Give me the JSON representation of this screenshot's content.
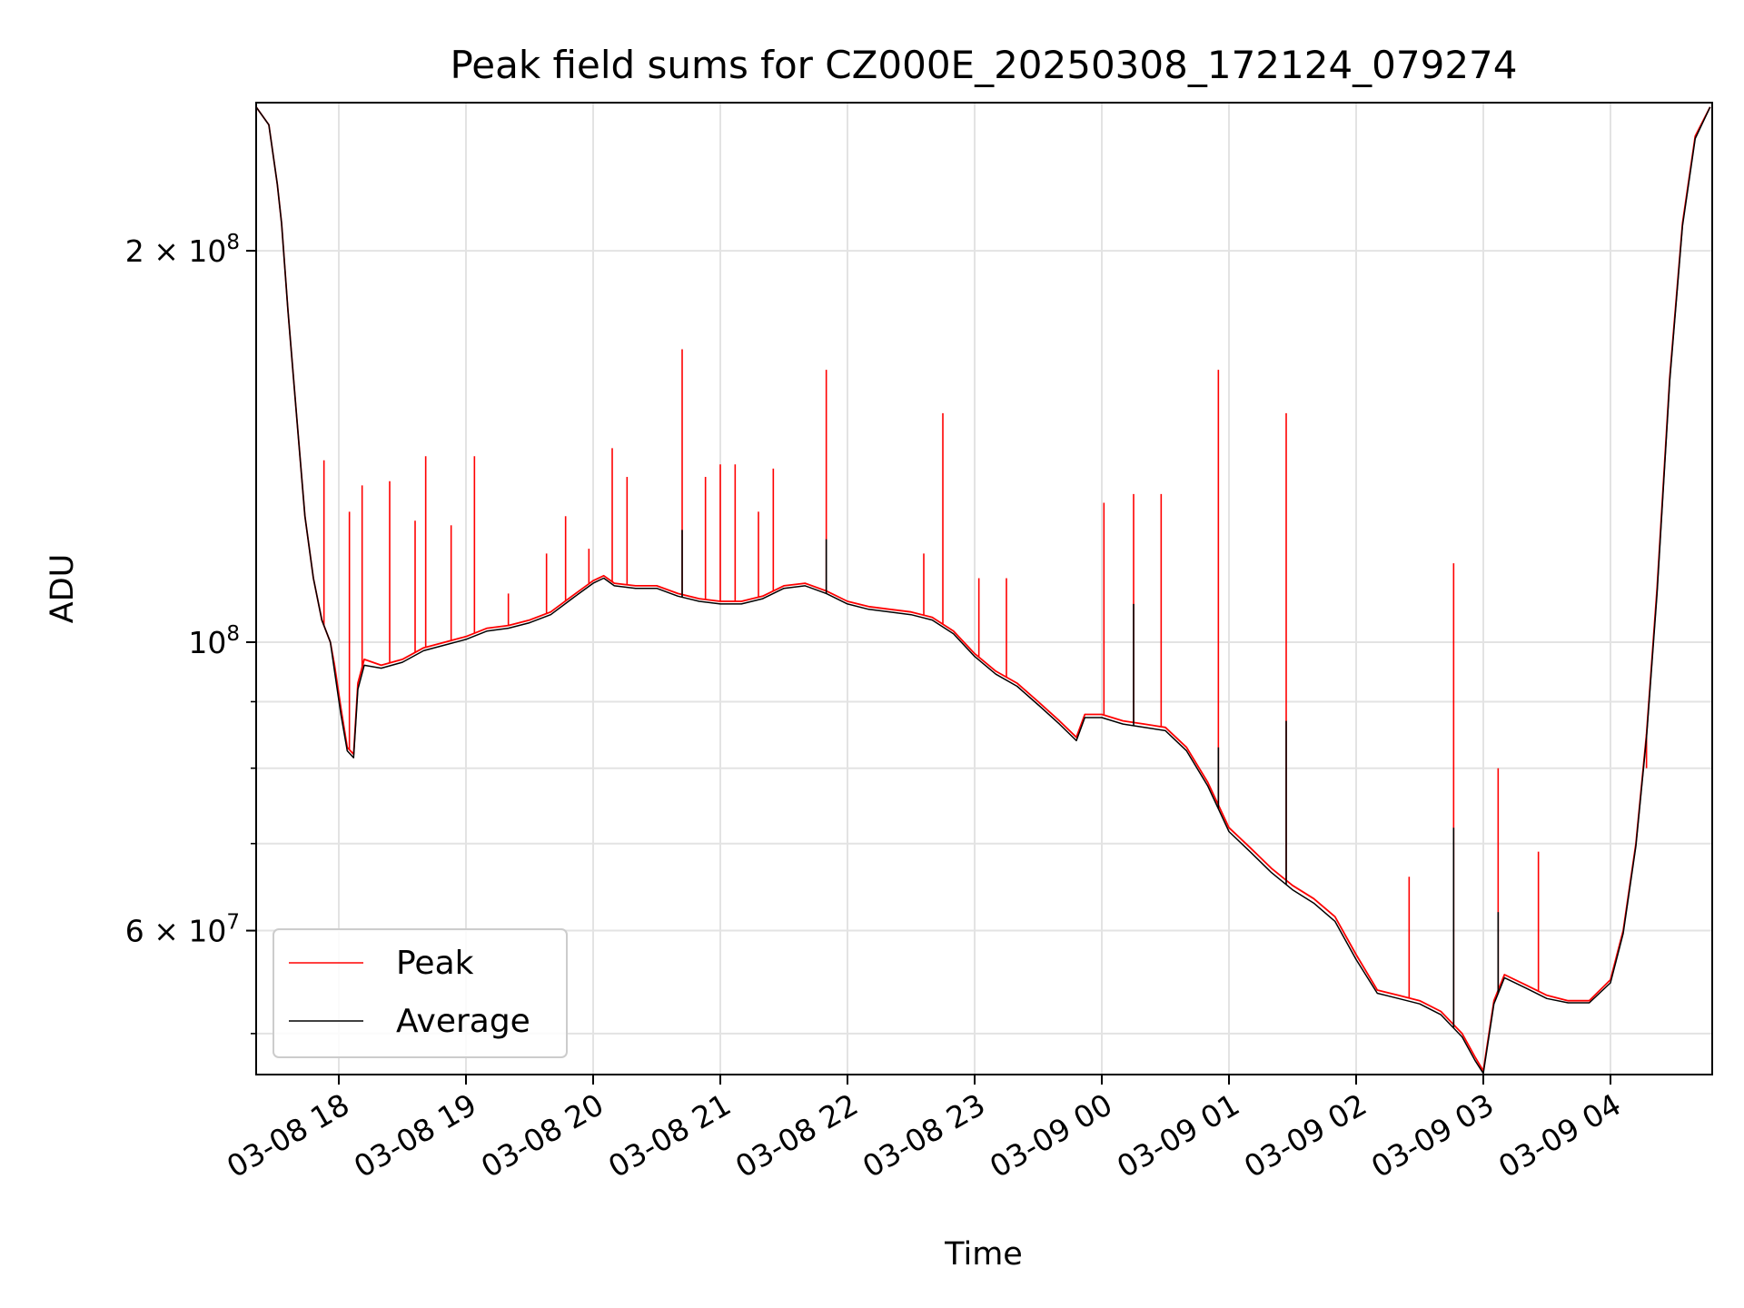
{
  "chart_data": {
    "type": "line",
    "title": "Peak field sums for CZ000E_20250308_172124_079274",
    "xlabel": "Time",
    "ylabel": "ADU",
    "yscale": "log",
    "ylim": [
      46500000,
      260000000
    ],
    "xlim": [
      "2025-03-08 17:21",
      "2025-03-09 04:48"
    ],
    "grid": true,
    "legend_position": "lower-left",
    "x_ticks": [
      {
        "value": "2025-03-08 18:00",
        "label": "03-08 18"
      },
      {
        "value": "2025-03-08 19:00",
        "label": "03-08 19"
      },
      {
        "value": "2025-03-08 20:00",
        "label": "03-08 20"
      },
      {
        "value": "2025-03-08 21:00",
        "label": "03-08 21"
      },
      {
        "value": "2025-03-08 22:00",
        "label": "03-08 22"
      },
      {
        "value": "2025-03-08 23:00",
        "label": "03-08 23"
      },
      {
        "value": "2025-03-09 00:00",
        "label": "03-09 00"
      },
      {
        "value": "2025-03-09 01:00",
        "label": "03-09 01"
      },
      {
        "value": "2025-03-09 02:00",
        "label": "03-09 02"
      },
      {
        "value": "2025-03-09 03:00",
        "label": "03-09 03"
      },
      {
        "value": "2025-03-09 04:00",
        "label": "03-09 04"
      }
    ],
    "y_ticks": [
      {
        "value": 200000000,
        "base": "2 × 10",
        "exp": "8"
      },
      {
        "value": 100000000,
        "base": "10",
        "exp": "8"
      },
      {
        "value": 60000000,
        "base": "6 × 10",
        "exp": "7"
      }
    ],
    "y_minor_ticks": [
      50000000,
      70000000,
      80000000,
      90000000
    ],
    "series": [
      {
        "name": "Peak",
        "color": "#ff0000",
        "points": [
          [
            "2025-03-08 17:21",
            258000000
          ],
          [
            "2025-03-08 17:27",
            250000000
          ],
          [
            "2025-03-08 17:31",
            225000000
          ],
          [
            "2025-03-08 17:33",
            210000000
          ],
          [
            "2025-03-08 17:36",
            180000000
          ],
          [
            "2025-03-08 17:40",
            150000000
          ],
          [
            "2025-03-08 17:44",
            125000000
          ],
          [
            "2025-03-08 17:48",
            112000000
          ],
          [
            "2025-03-08 17:52",
            104000000
          ],
          [
            "2025-03-08 17:56",
            100000000
          ],
          [
            "2025-03-08 17:58",
            96000000
          ],
          [
            "2025-03-08 18:01",
            89000000
          ],
          [
            "2025-03-08 18:04",
            83000000
          ],
          [
            "2025-03-08 18:07",
            82000000
          ],
          [
            "2025-03-08 18:09",
            93000000
          ],
          [
            "2025-03-08 18:12",
            97000000
          ],
          [
            "2025-03-08 18:20",
            96000000
          ],
          [
            "2025-03-08 18:30",
            97000000
          ],
          [
            "2025-03-08 18:40",
            99000000
          ],
          [
            "2025-03-08 18:50",
            100000000
          ],
          [
            "2025-03-08 19:00",
            101000000
          ],
          [
            "2025-03-08 19:10",
            102500000
          ],
          [
            "2025-03-08 19:20",
            103000000
          ],
          [
            "2025-03-08 19:30",
            104000000
          ],
          [
            "2025-03-08 19:40",
            105500000
          ],
          [
            "2025-03-08 19:50",
            108500000
          ],
          [
            "2025-03-08 20:00",
            111500000
          ],
          [
            "2025-03-08 20:05",
            112500000
          ],
          [
            "2025-03-08 20:10",
            111000000
          ],
          [
            "2025-03-08 20:20",
            110500000
          ],
          [
            "2025-03-08 20:30",
            110500000
          ],
          [
            "2025-03-08 20:40",
            109000000
          ],
          [
            "2025-03-08 20:50",
            108000000
          ],
          [
            "2025-03-08 21:00",
            107500000
          ],
          [
            "2025-03-08 21:10",
            107500000
          ],
          [
            "2025-03-08 21:20",
            108500000
          ],
          [
            "2025-03-08 21:30",
            110500000
          ],
          [
            "2025-03-08 21:40",
            111000000
          ],
          [
            "2025-03-08 21:50",
            109500000
          ],
          [
            "2025-03-08 22:00",
            107500000
          ],
          [
            "2025-03-08 22:10",
            106500000
          ],
          [
            "2025-03-08 22:20",
            106000000
          ],
          [
            "2025-03-08 22:30",
            105500000
          ],
          [
            "2025-03-08 22:40",
            104500000
          ],
          [
            "2025-03-08 22:50",
            102000000
          ],
          [
            "2025-03-08 23:00",
            98000000
          ],
          [
            "2025-03-08 23:10",
            95000000
          ],
          [
            "2025-03-08 23:20",
            93000000
          ],
          [
            "2025-03-08 23:30",
            90000000
          ],
          [
            "2025-03-08 23:40",
            87000000
          ],
          [
            "2025-03-08 23:48",
            84500000
          ],
          [
            "2025-03-08 23:52",
            88000000
          ],
          [
            "2025-03-09 00:00",
            88000000
          ],
          [
            "2025-03-09 00:10",
            87000000
          ],
          [
            "2025-03-09 00:20",
            86500000
          ],
          [
            "2025-03-09 00:30",
            86000000
          ],
          [
            "2025-03-09 00:40",
            83000000
          ],
          [
            "2025-03-09 00:50",
            78000000
          ],
          [
            "2025-03-09 01:00",
            72000000
          ],
          [
            "2025-03-09 01:10",
            69500000
          ],
          [
            "2025-03-09 01:20",
            67000000
          ],
          [
            "2025-03-09 01:30",
            65000000
          ],
          [
            "2025-03-09 01:40",
            63500000
          ],
          [
            "2025-03-09 01:50",
            61500000
          ],
          [
            "2025-03-09 02:00",
            57500000
          ],
          [
            "2025-03-09 02:10",
            54000000
          ],
          [
            "2025-03-09 02:20",
            53500000
          ],
          [
            "2025-03-09 02:30",
            53000000
          ],
          [
            "2025-03-09 02:40",
            52000000
          ],
          [
            "2025-03-09 02:50",
            50000000
          ],
          [
            "2025-03-09 02:56",
            48000000
          ],
          [
            "2025-03-09 03:00",
            46800000
          ],
          [
            "2025-03-09 03:05",
            53000000
          ],
          [
            "2025-03-09 03:10",
            55500000
          ],
          [
            "2025-03-09 03:20",
            54500000
          ],
          [
            "2025-03-09 03:30",
            53500000
          ],
          [
            "2025-03-09 03:40",
            53000000
          ],
          [
            "2025-03-09 03:50",
            53000000
          ],
          [
            "2025-03-09 04:00",
            55000000
          ],
          [
            "2025-03-09 04:06",
            60000000
          ],
          [
            "2025-03-09 04:12",
            70000000
          ],
          [
            "2025-03-09 04:17",
            85000000
          ],
          [
            "2025-03-09 04:22",
            110000000
          ],
          [
            "2025-03-09 04:28",
            160000000
          ],
          [
            "2025-03-09 04:34",
            210000000
          ],
          [
            "2025-03-09 04:40",
            245000000
          ],
          [
            "2025-03-09 04:47",
            258000000
          ]
        ],
        "spikes": [
          [
            "2025-03-08 17:53",
            138000000
          ],
          [
            "2025-03-08 18:05",
            126000000
          ],
          [
            "2025-03-08 18:11",
            132000000
          ],
          [
            "2025-03-08 18:24",
            133000000
          ],
          [
            "2025-03-08 18:36",
            124000000
          ],
          [
            "2025-03-08 18:41",
            139000000
          ],
          [
            "2025-03-08 18:53",
            123000000
          ],
          [
            "2025-03-08 19:04",
            139000000
          ],
          [
            "2025-03-08 19:20",
            109000000
          ],
          [
            "2025-03-08 19:38",
            117000000
          ],
          [
            "2025-03-08 19:47",
            125000000
          ],
          [
            "2025-03-08 19:58",
            118000000
          ],
          [
            "2025-03-08 20:09",
            141000000
          ],
          [
            "2025-03-08 20:16",
            134000000
          ],
          [
            "2025-03-08 20:42",
            168000000
          ],
          [
            "2025-03-08 20:53",
            134000000
          ],
          [
            "2025-03-08 21:00",
            137000000
          ],
          [
            "2025-03-08 21:07",
            137000000
          ],
          [
            "2025-03-08 21:18",
            126000000
          ],
          [
            "2025-03-08 21:25",
            136000000
          ],
          [
            "2025-03-08 21:50",
            162000000
          ],
          [
            "2025-03-08 22:36",
            117000000
          ],
          [
            "2025-03-08 22:45",
            150000000
          ],
          [
            "2025-03-08 23:02",
            112000000
          ],
          [
            "2025-03-08 23:15",
            112000000
          ],
          [
            "2025-03-09 00:01",
            128000000
          ],
          [
            "2025-03-09 00:15",
            130000000
          ],
          [
            "2025-03-09 00:28",
            130000000
          ],
          [
            "2025-03-09 00:55",
            162000000
          ],
          [
            "2025-03-09 01:27",
            150000000
          ],
          [
            "2025-03-09 02:25",
            66000000
          ],
          [
            "2025-03-09 02:46",
            115000000
          ],
          [
            "2025-03-09 03:07",
            80000000
          ],
          [
            "2025-03-09 03:26",
            69000000
          ],
          [
            "2025-03-09 04:17",
            80000000
          ]
        ]
      },
      {
        "name": "Average",
        "color": "#000000",
        "points": [
          [
            "2025-03-08 17:21",
            258000000
          ],
          [
            "2025-03-08 17:27",
            250000000
          ],
          [
            "2025-03-08 17:31",
            225000000
          ],
          [
            "2025-03-08 17:33",
            210000000
          ],
          [
            "2025-03-08 17:36",
            180000000
          ],
          [
            "2025-03-08 17:40",
            150000000
          ],
          [
            "2025-03-08 17:44",
            125000000
          ],
          [
            "2025-03-08 17:48",
            112000000
          ],
          [
            "2025-03-08 17:52",
            104000000
          ],
          [
            "2025-03-08 17:56",
            100000000
          ],
          [
            "2025-03-08 17:58",
            95000000
          ],
          [
            "2025-03-08 18:01",
            88000000
          ],
          [
            "2025-03-08 18:04",
            82500000
          ],
          [
            "2025-03-08 18:07",
            81500000
          ],
          [
            "2025-03-08 18:09",
            92000000
          ],
          [
            "2025-03-08 18:12",
            96000000
          ],
          [
            "2025-03-08 18:20",
            95500000
          ],
          [
            "2025-03-08 18:30",
            96500000
          ],
          [
            "2025-03-08 18:40",
            98500000
          ],
          [
            "2025-03-08 18:50",
            99500000
          ],
          [
            "2025-03-08 19:00",
            100500000
          ],
          [
            "2025-03-08 19:10",
            102000000
          ],
          [
            "2025-03-08 19:20",
            102500000
          ],
          [
            "2025-03-08 19:30",
            103500000
          ],
          [
            "2025-03-08 19:40",
            105000000
          ],
          [
            "2025-03-08 19:50",
            108000000
          ],
          [
            "2025-03-08 20:00",
            111000000
          ],
          [
            "2025-03-08 20:05",
            112000000
          ],
          [
            "2025-03-08 20:10",
            110500000
          ],
          [
            "2025-03-08 20:20",
            110000000
          ],
          [
            "2025-03-08 20:30",
            110000000
          ],
          [
            "2025-03-08 20:40",
            108500000
          ],
          [
            "2025-03-08 20:50",
            107500000
          ],
          [
            "2025-03-08 21:00",
            107000000
          ],
          [
            "2025-03-08 21:10",
            107000000
          ],
          [
            "2025-03-08 21:20",
            108000000
          ],
          [
            "2025-03-08 21:30",
            110000000
          ],
          [
            "2025-03-08 21:40",
            110500000
          ],
          [
            "2025-03-08 21:50",
            109000000
          ],
          [
            "2025-03-08 22:00",
            107000000
          ],
          [
            "2025-03-08 22:10",
            106000000
          ],
          [
            "2025-03-08 22:20",
            105500000
          ],
          [
            "2025-03-08 22:30",
            105000000
          ],
          [
            "2025-03-08 22:40",
            104000000
          ],
          [
            "2025-03-08 22:50",
            101500000
          ],
          [
            "2025-03-08 23:00",
            97500000
          ],
          [
            "2025-03-08 23:10",
            94500000
          ],
          [
            "2025-03-08 23:20",
            92500000
          ],
          [
            "2025-03-08 23:30",
            89500000
          ],
          [
            "2025-03-08 23:40",
            86500000
          ],
          [
            "2025-03-08 23:48",
            84000000
          ],
          [
            "2025-03-08 23:52",
            87500000
          ],
          [
            "2025-03-09 00:00",
            87500000
          ],
          [
            "2025-03-09 00:10",
            86500000
          ],
          [
            "2025-03-09 00:20",
            86000000
          ],
          [
            "2025-03-09 00:30",
            85500000
          ],
          [
            "2025-03-09 00:40",
            82500000
          ],
          [
            "2025-03-09 00:50",
            77500000
          ],
          [
            "2025-03-09 01:00",
            71500000
          ],
          [
            "2025-03-09 01:10",
            69000000
          ],
          [
            "2025-03-09 01:20",
            66500000
          ],
          [
            "2025-03-09 01:30",
            64500000
          ],
          [
            "2025-03-09 01:40",
            63000000
          ],
          [
            "2025-03-09 01:50",
            61000000
          ],
          [
            "2025-03-09 02:00",
            57000000
          ],
          [
            "2025-03-09 02:10",
            53700000
          ],
          [
            "2025-03-09 02:20",
            53200000
          ],
          [
            "2025-03-09 02:30",
            52700000
          ],
          [
            "2025-03-09 02:40",
            51700000
          ],
          [
            "2025-03-09 02:50",
            49700000
          ],
          [
            "2025-03-09 02:56",
            47700000
          ],
          [
            "2025-03-09 03:00",
            46600000
          ],
          [
            "2025-03-09 03:05",
            52700000
          ],
          [
            "2025-03-09 03:10",
            55200000
          ],
          [
            "2025-03-09 03:20",
            54200000
          ],
          [
            "2025-03-09 03:30",
            53200000
          ],
          [
            "2025-03-09 03:40",
            52800000
          ],
          [
            "2025-03-09 03:50",
            52800000
          ],
          [
            "2025-03-09 04:00",
            54700000
          ],
          [
            "2025-03-09 04:06",
            59700000
          ],
          [
            "2025-03-09 04:12",
            69700000
          ],
          [
            "2025-03-09 04:17",
            84500000
          ],
          [
            "2025-03-09 04:22",
            109000000
          ],
          [
            "2025-03-09 04:28",
            159000000
          ],
          [
            "2025-03-09 04:34",
            209000000
          ],
          [
            "2025-03-09 04:40",
            244000000
          ],
          [
            "2025-03-09 04:47",
            258000000
          ]
        ],
        "spikes": [
          [
            "2025-03-08 20:42",
            122000000
          ],
          [
            "2025-03-08 21:50",
            120000000
          ],
          [
            "2025-03-09 00:15",
            107000000
          ],
          [
            "2025-03-09 00:55",
            83000000
          ],
          [
            "2025-03-09 01:27",
            87000000
          ],
          [
            "2025-03-09 02:46",
            72000000
          ],
          [
            "2025-03-09 03:07",
            62000000
          ]
        ]
      }
    ]
  }
}
